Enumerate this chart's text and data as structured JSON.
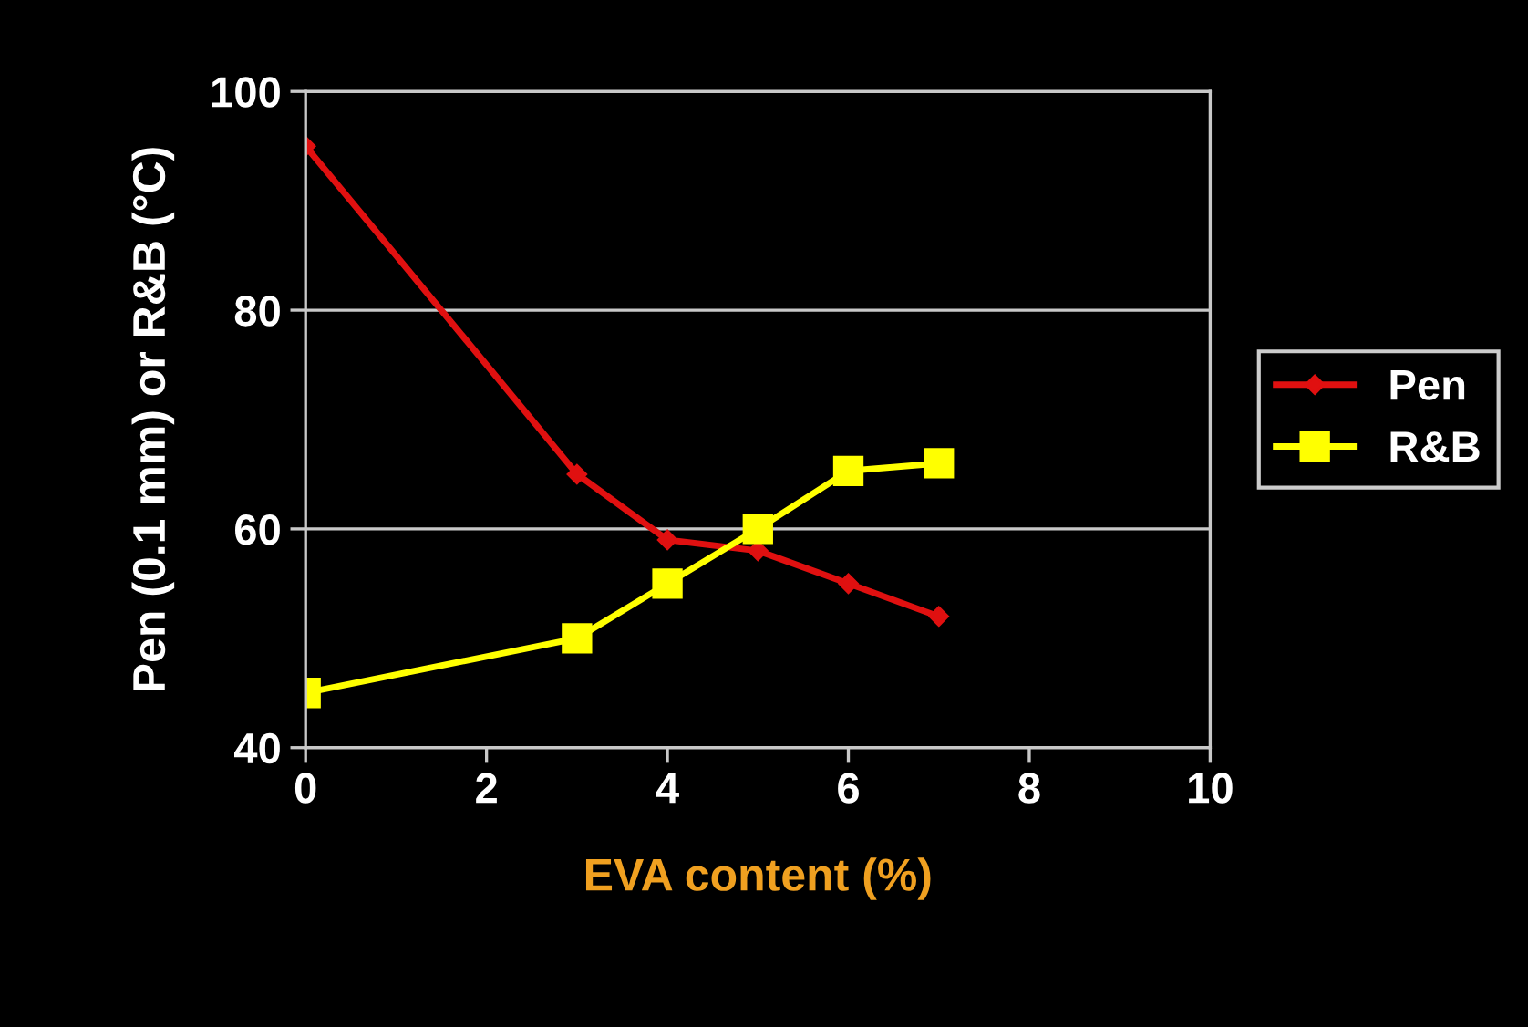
{
  "chart_data": {
    "type": "line",
    "xlabel": "EVA content (%)",
    "ylabel": "Pen (0.1 mm) or R&B (°C)",
    "x": [
      0,
      3,
      4,
      5,
      6,
      7
    ],
    "series": [
      {
        "name": "Pen",
        "color": "#e01010",
        "marker": "diamond",
        "values": [
          95,
          65,
          59,
          58,
          55,
          52
        ]
      },
      {
        "name": "R&B",
        "color": "#ffff00",
        "marker": "square",
        "values": [
          45,
          50,
          55,
          60,
          65.3,
          66
        ]
      }
    ],
    "xlim": [
      0,
      10
    ],
    "xticks": [
      0,
      2,
      4,
      6,
      8,
      10
    ],
    "ylim": [
      40,
      100
    ],
    "yticks": [
      40,
      60,
      80,
      100
    ],
    "grid": "y",
    "legend": "right"
  }
}
